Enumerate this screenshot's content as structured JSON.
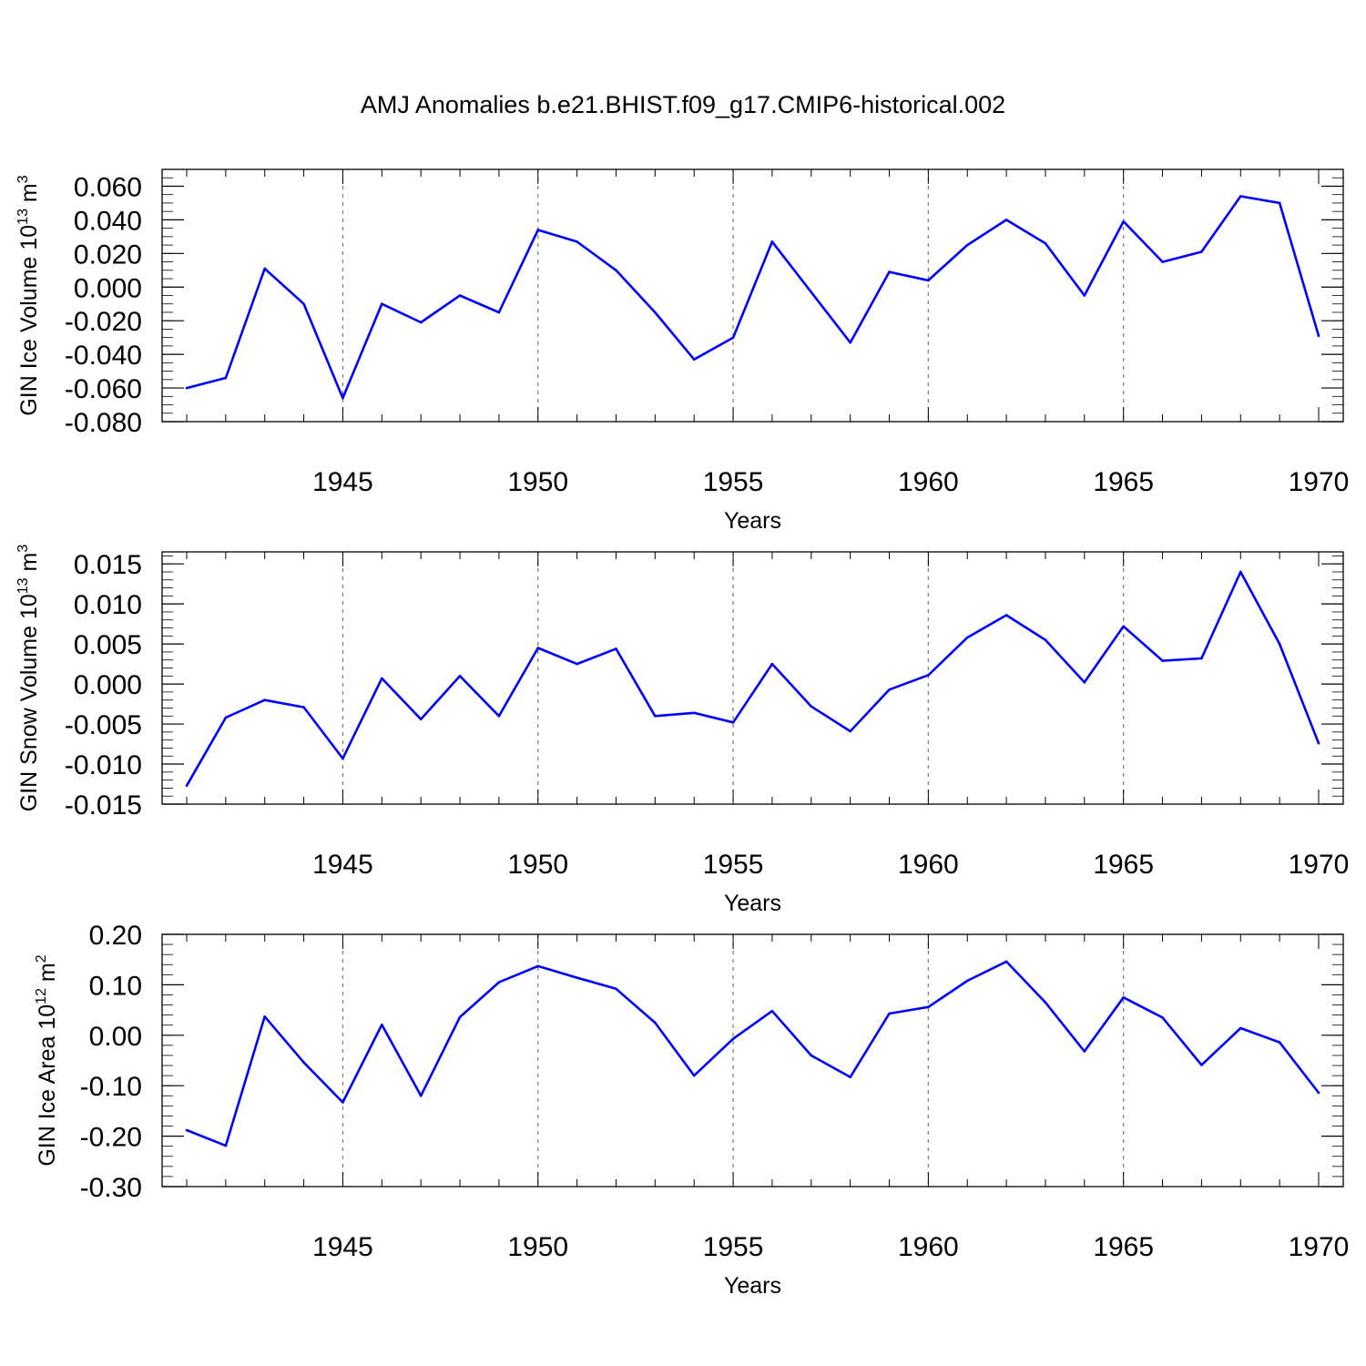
{
  "title": "AMJ Anomalies b.e21.BHIST.f09_g17.CMIP6-historical.002",
  "colors": {
    "line": "#0000ff",
    "axis": "#000000",
    "grid": "#777777"
  },
  "chart_data": [
    {
      "type": "line",
      "ylabel": "GIN Ice Volume 10",
      "ylabel_power": "13",
      "ylabel_unit_prefix": " m",
      "ylabel_unit_power": "3",
      "xlabel": "Years",
      "xlim": [
        1941,
        1970
      ],
      "ylim": [
        -0.08,
        0.07
      ],
      "ytick_values": [
        0.06,
        0.04,
        0.02,
        0.0,
        -0.02,
        -0.04,
        -0.06,
        -0.08
      ],
      "ytick_labels": [
        "0.060",
        "0.040",
        "0.020",
        "0.000",
        "-0.020",
        "-0.040",
        "-0.060",
        "-0.080"
      ],
      "ytick_minor_step": 0.005,
      "xtick_values": [
        1945,
        1950,
        1955,
        1960,
        1965,
        1970
      ],
      "xtick_labels": [
        "1945",
        "1950",
        "1955",
        "1960",
        "1965",
        "1970"
      ],
      "grid": "vertical dashed at major x ticks",
      "x": [
        1941,
        1942,
        1943,
        1944,
        1945,
        1946,
        1947,
        1948,
        1949,
        1950,
        1951,
        1952,
        1953,
        1954,
        1955,
        1956,
        1957,
        1958,
        1959,
        1960,
        1961,
        1962,
        1963,
        1964,
        1965,
        1966,
        1967,
        1968,
        1969,
        1970
      ],
      "series": [
        {
          "name": "GIN Ice Volume",
          "values": [
            -0.06,
            -0.054,
            0.011,
            -0.01,
            -0.066,
            -0.01,
            -0.021,
            -0.005,
            -0.015,
            0.034,
            0.027,
            0.01,
            -0.015,
            -0.043,
            -0.03,
            0.027,
            -0.003,
            -0.033,
            0.009,
            0.004,
            0.025,
            0.04,
            0.026,
            -0.005,
            0.039,
            0.015,
            0.021,
            0.054,
            0.05,
            -0.029
          ]
        }
      ]
    },
    {
      "type": "line",
      "ylabel": "GIN Snow Volume 10",
      "ylabel_power": "13",
      "ylabel_unit_prefix": " m",
      "ylabel_unit_power": "3",
      "xlabel": "Years",
      "xlim": [
        1941,
        1970
      ],
      "ylim": [
        -0.015,
        0.0165
      ],
      "ytick_values": [
        0.015,
        0.01,
        0.005,
        0.0,
        -0.005,
        -0.01,
        -0.015
      ],
      "ytick_labels": [
        "0.015",
        "0.010",
        "0.005",
        "0.000",
        "-0.005",
        "-0.010",
        "-0.015"
      ],
      "ytick_minor_step": 0.001,
      "xtick_values": [
        1945,
        1950,
        1955,
        1960,
        1965,
        1970
      ],
      "xtick_labels": [
        "1945",
        "1950",
        "1955",
        "1960",
        "1965",
        "1970"
      ],
      "grid": "vertical dashed at major x ticks",
      "x": [
        1941,
        1942,
        1943,
        1944,
        1945,
        1946,
        1947,
        1948,
        1949,
        1950,
        1951,
        1952,
        1953,
        1954,
        1955,
        1956,
        1957,
        1958,
        1959,
        1960,
        1961,
        1962,
        1963,
        1964,
        1965,
        1966,
        1967,
        1968,
        1969,
        1970
      ],
      "series": [
        {
          "name": "GIN Snow Volume",
          "values": [
            -0.0127,
            -0.0042,
            -0.002,
            -0.0029,
            -0.0093,
            0.0007,
            -0.0044,
            0.001,
            -0.004,
            0.0045,
            0.0025,
            0.0044,
            -0.004,
            -0.0036,
            -0.0048,
            0.0025,
            -0.0028,
            -0.0059,
            -0.0007,
            0.0011,
            0.0058,
            0.0086,
            0.0055,
            0.0002,
            0.0072,
            0.0029,
            0.0032,
            0.014,
            0.005,
            -0.0074
          ]
        }
      ]
    },
    {
      "type": "line",
      "ylabel": "GIN Ice Area 10",
      "ylabel_power": "12",
      "ylabel_unit_prefix": " m",
      "ylabel_unit_power": "2",
      "xlabel": "Years",
      "xlim": [
        1941,
        1970
      ],
      "ylim": [
        -0.3,
        0.2
      ],
      "ytick_values": [
        0.2,
        0.1,
        0.0,
        -0.1,
        -0.2,
        -0.3
      ],
      "ytick_labels": [
        "0.20",
        "0.10",
        "0.00",
        "-0.10",
        "-0.20",
        "-0.30"
      ],
      "ytick_minor_step": 0.02,
      "xtick_values": [
        1945,
        1950,
        1955,
        1960,
        1965,
        1970
      ],
      "xtick_labels": [
        "1945",
        "1950",
        "1955",
        "1960",
        "1965",
        "1970"
      ],
      "grid": "vertical dashed at major x ticks",
      "x": [
        1941,
        1942,
        1943,
        1944,
        1945,
        1946,
        1947,
        1948,
        1949,
        1950,
        1951,
        1952,
        1953,
        1954,
        1955,
        1956,
        1957,
        1958,
        1959,
        1960,
        1961,
        1962,
        1963,
        1964,
        1965,
        1966,
        1967,
        1968,
        1969,
        1970
      ],
      "series": [
        {
          "name": "GIN Ice Area",
          "values": [
            -0.188,
            -0.219,
            0.037,
            -0.054,
            -0.133,
            0.021,
            -0.12,
            0.036,
            0.105,
            0.137,
            0.114,
            0.092,
            0.025,
            -0.08,
            -0.007,
            0.048,
            -0.04,
            -0.083,
            0.043,
            0.056,
            0.108,
            0.146,
            0.065,
            -0.032,
            0.075,
            0.035,
            -0.059,
            0.014,
            -0.014,
            -0.114
          ]
        }
      ]
    }
  ]
}
